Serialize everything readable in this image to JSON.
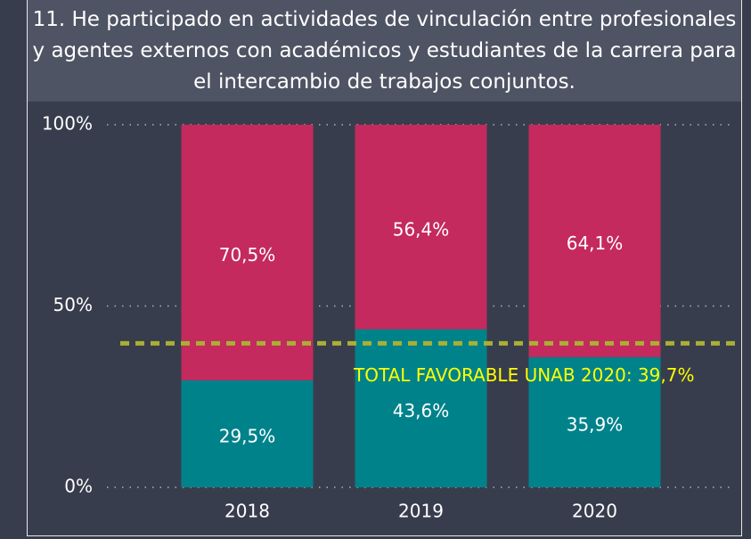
{
  "chart_data": {
    "type": "stacked_bar",
    "title": "11. He participado en actividades de vinculación entre profesionales y agentes externos con académicos y estudiantes de la carrera para el intercambio de trabajos conjuntos.",
    "categories": [
      "2018",
      "2019",
      "2020"
    ],
    "series": [
      {
        "color": "#00828b",
        "values": [
          29.5,
          43.6,
          35.9
        ],
        "value_labels": [
          "29,5%",
          "43,6%",
          "35,9%"
        ]
      },
      {
        "color": "#c42a5d",
        "values": [
          70.5,
          56.4,
          64.1
        ],
        "value_labels": [
          "70,5%",
          "56,4%",
          "64,1%"
        ]
      }
    ],
    "ylim": [
      0,
      100
    ],
    "yticks": [
      {
        "value": 0,
        "label": "0%"
      },
      {
        "value": 50,
        "label": "50%"
      },
      {
        "value": 100,
        "label": "100%"
      }
    ],
    "grid": true,
    "reference_line": {
      "value": 39.7,
      "color": "#a9b033",
      "label": "TOTAL FAVORABLE UNAB 2020: 39,7%",
      "label_color": "#ffff00"
    }
  }
}
